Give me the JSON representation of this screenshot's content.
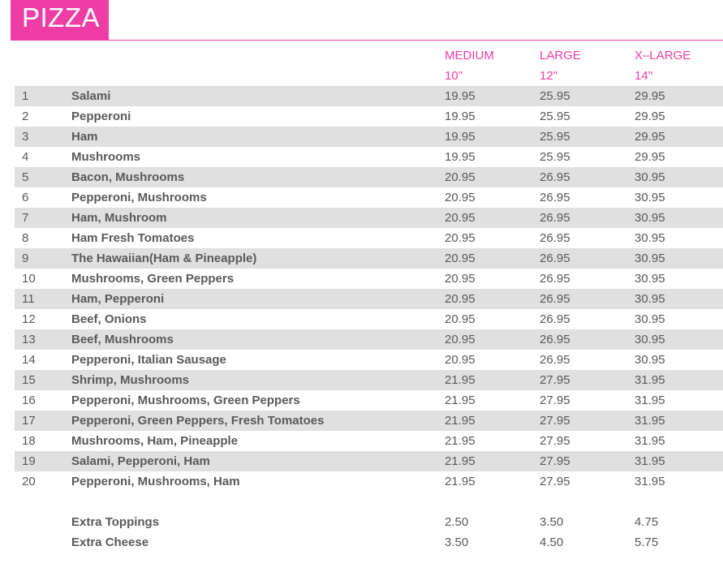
{
  "title": "PIZZA",
  "header": {
    "sizes": [
      {
        "name": "MEDIUM",
        "inches": "10''"
      },
      {
        "name": "LARGE",
        "inches": "12''"
      },
      {
        "name": "X–LARGE",
        "inches": "14''"
      }
    ]
  },
  "items": [
    {
      "num": "1",
      "name": "Salami",
      "medium": "19.95",
      "large": "25.95",
      "xlarge": "29.95"
    },
    {
      "num": "2",
      "name": "Pepperoni",
      "medium": "19.95",
      "large": "25.95",
      "xlarge": "29.95"
    },
    {
      "num": "3",
      "name": "Ham",
      "medium": "19.95",
      "large": "25.95",
      "xlarge": "29.95"
    },
    {
      "num": "4",
      "name": "Mushrooms",
      "medium": "19.95",
      "large": "25.95",
      "xlarge": "29.95"
    },
    {
      "num": "5",
      "name": "Bacon, Mushrooms",
      "medium": "20.95",
      "large": "26.95",
      "xlarge": "30.95"
    },
    {
      "num": "6",
      "name": "Pepperoni, Mushrooms",
      "medium": "20.95",
      "large": "26.95",
      "xlarge": "30.95"
    },
    {
      "num": "7",
      "name": "Ham, Mushroom",
      "medium": "20.95",
      "large": "26.95",
      "xlarge": "30.95"
    },
    {
      "num": "8",
      "name": "Ham Fresh Tomatoes",
      "medium": "20.95",
      "large": "26.95",
      "xlarge": "30.95"
    },
    {
      "num": "9",
      "name": "The Hawaiian(Ham & Pineapple)",
      "medium": "20.95",
      "large": "26.95",
      "xlarge": "30.95"
    },
    {
      "num": "10",
      "name": "Mushrooms, Green Peppers",
      "medium": "20.95",
      "large": "26.95",
      "xlarge": "30.95"
    },
    {
      "num": "11",
      "name": "Ham, Pepperoni",
      "medium": "20.95",
      "large": "26.95",
      "xlarge": "30.95"
    },
    {
      "num": "12",
      "name": "Beef, Onions",
      "medium": "20.95",
      "large": "26.95",
      "xlarge": "30.95"
    },
    {
      "num": "13",
      "name": "Beef, Mushrooms",
      "medium": "20.95",
      "large": "26.95",
      "xlarge": "30.95"
    },
    {
      "num": "14",
      "name": "Pepperoni, Italian Sausage",
      "medium": "20.95",
      "large": "26.95",
      "xlarge": "30.95"
    },
    {
      "num": "15",
      "name": "Shrimp, Mushrooms",
      "medium": "21.95",
      "large": "27.95",
      "xlarge": "31.95"
    },
    {
      "num": "16",
      "name": "Pepperoni, Mushrooms, Green Peppers",
      "medium": "21.95",
      "large": "27.95",
      "xlarge": "31.95"
    },
    {
      "num": "17",
      "name": "Pepperoni, Green Peppers, Fresh Tomatoes",
      "medium": "21.95",
      "large": "27.95",
      "xlarge": "31.95"
    },
    {
      "num": "18",
      "name": "Mushrooms, Ham, Pineapple",
      "medium": "21.95",
      "large": "27.95",
      "xlarge": "31.95"
    },
    {
      "num": "19",
      "name": "Salami, Pepperoni, Ham",
      "medium": "21.95",
      "large": "27.95",
      "xlarge": "31.95"
    },
    {
      "num": "20",
      "name": "Pepperoni, Mushrooms, Ham",
      "medium": "21.95",
      "large": "27.95",
      "xlarge": "31.95"
    }
  ],
  "extras": [
    {
      "name": "Extra Toppings",
      "medium": "2.50",
      "large": "3.50",
      "xlarge": "4.75"
    },
    {
      "name": "Extra Cheese",
      "medium": "3.50",
      "large": "4.50",
      "xlarge": "5.75"
    }
  ],
  "colors": {
    "accent": "#ee3ea5",
    "row_shade": "#e0e0e0",
    "text": "#5a5a5a"
  }
}
